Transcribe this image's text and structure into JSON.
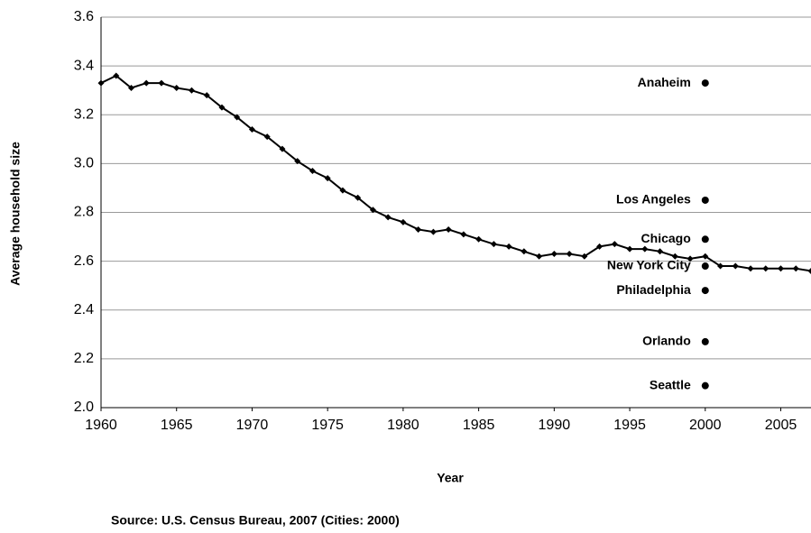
{
  "chart_data": {
    "type": "line",
    "x": [
      1960,
      1961,
      1962,
      1963,
      1964,
      1965,
      1966,
      1967,
      1968,
      1969,
      1970,
      1971,
      1972,
      1973,
      1974,
      1975,
      1976,
      1977,
      1978,
      1979,
      1980,
      1981,
      1982,
      1983,
      1984,
      1985,
      1986,
      1987,
      1988,
      1989,
      1990,
      1991,
      1992,
      1993,
      1994,
      1995,
      1996,
      1997,
      1998,
      1999,
      2000,
      2001,
      2002,
      2003,
      2004,
      2005,
      2006,
      2007
    ],
    "values": [
      3.33,
      3.36,
      3.31,
      3.33,
      3.33,
      3.31,
      3.3,
      3.28,
      3.23,
      3.19,
      3.14,
      3.11,
      3.06,
      3.01,
      2.97,
      2.94,
      2.89,
      2.86,
      2.81,
      2.78,
      2.76,
      2.73,
      2.72,
      2.73,
      2.71,
      2.69,
      2.67,
      2.66,
      2.64,
      2.62,
      2.63,
      2.63,
      2.62,
      2.66,
      2.67,
      2.65,
      2.65,
      2.64,
      2.62,
      2.61,
      2.62,
      2.58,
      2.58,
      2.57,
      2.57,
      2.57,
      2.57,
      2.56
    ],
    "color": "#000000",
    "points": [
      {
        "name": "Anaheim",
        "x": 2000,
        "value": 3.33
      },
      {
        "name": "Los Angeles",
        "x": 2000,
        "value": 2.85
      },
      {
        "name": "Chicago",
        "x": 2000,
        "value": 2.69
      },
      {
        "name": "New York City",
        "x": 2000,
        "value": 2.58
      },
      {
        "name": "Philadelphia",
        "x": 2000,
        "value": 2.48
      },
      {
        "name": "Orlando",
        "x": 2000,
        "value": 2.27
      },
      {
        "name": "Seattle",
        "x": 2000,
        "value": 2.09
      }
    ],
    "xlabel": "Year",
    "ylabel": "Average household size",
    "source": "Source: U.S. Census Bureau, 2007 (Cities: 2000)",
    "xlim": [
      1960,
      2007
    ],
    "xticks": [
      1960,
      1965,
      1970,
      1975,
      1980,
      1985,
      1990,
      1995,
      2000,
      2005
    ],
    "ylim": [
      2.0,
      3.6
    ],
    "yticks": [
      {
        "value": 2.0,
        "label": "2.0"
      },
      2.2,
      2.4,
      2.6,
      2.8,
      {
        "value": 3.0,
        "label": "3.0"
      },
      3.2,
      3.4,
      3.6
    ],
    "grid": true
  }
}
